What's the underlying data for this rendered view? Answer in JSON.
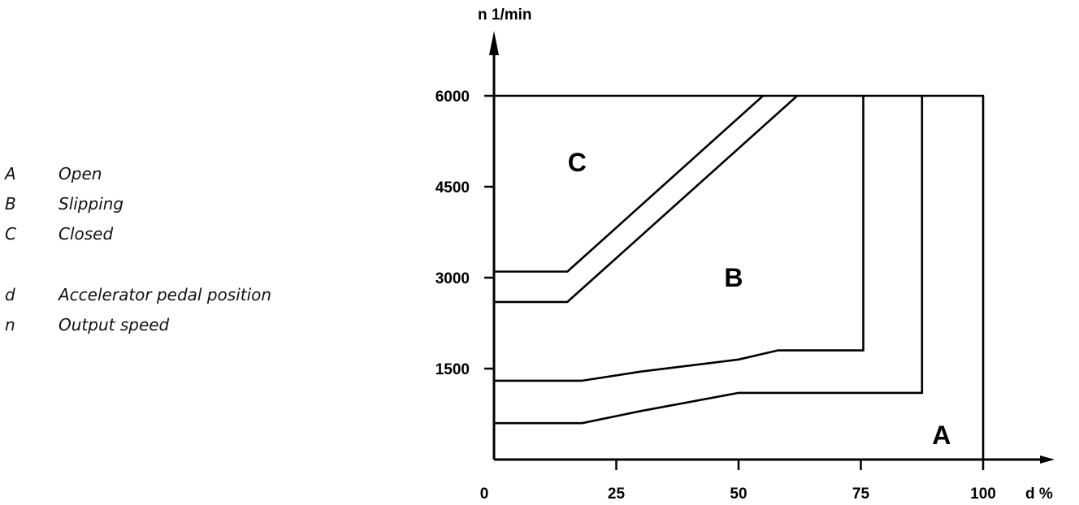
{
  "legend": {
    "items": [
      {
        "key": "A",
        "label": "Open"
      },
      {
        "key": "B",
        "label": "Slipping"
      },
      {
        "key": "C",
        "label": "Closed"
      }
    ],
    "axis_items": [
      {
        "key": "d",
        "label": "Accelerator pedal position"
      },
      {
        "key": "n",
        "label": "Output speed"
      }
    ]
  },
  "chart_data": {
    "type": "line",
    "title": "",
    "xlabel": "d %",
    "ylabel": "n 1/min",
    "xlim": [
      0,
      100
    ],
    "ylim": [
      0,
      6000
    ],
    "grid": false,
    "x_ticks": [
      0,
      25,
      50,
      75,
      100
    ],
    "x_tick_labels": [
      "0",
      "25",
      "50",
      "75",
      "100"
    ],
    "y_ticks": [
      1500,
      3000,
      4500,
      6000
    ],
    "y_tick_labels": [
      "1500",
      "3000",
      "4500",
      "6000"
    ],
    "series": [
      {
        "points": [
          [
            0,
            3100
          ],
          [
            15,
            3100
          ],
          [
            55,
            6000
          ]
        ]
      },
      {
        "points": [
          [
            0,
            2600
          ],
          [
            15,
            2600
          ],
          [
            62,
            6000
          ]
        ]
      },
      {
        "points": [
          [
            0,
            1300
          ],
          [
            18,
            1300
          ],
          [
            30,
            1450
          ],
          [
            50,
            1650
          ],
          [
            58,
            1800
          ],
          [
            75.5,
            1800
          ],
          [
            75.5,
            6000
          ]
        ]
      },
      {
        "points": [
          [
            0,
            600
          ],
          [
            18,
            600
          ],
          [
            30,
            800
          ],
          [
            50,
            1100
          ],
          [
            60,
            1100
          ],
          [
            87.5,
            1100
          ],
          [
            87.5,
            6000
          ]
        ]
      },
      {
        "points": [
          [
            0,
            6000
          ],
          [
            100,
            6000
          ],
          [
            100,
            0
          ]
        ]
      }
    ],
    "annotations": [
      {
        "text": "C",
        "x": 17,
        "y": 4900
      },
      {
        "text": "B",
        "x": 49,
        "y": 3000
      },
      {
        "text": "A",
        "x": 91.5,
        "y": 400
      }
    ]
  }
}
